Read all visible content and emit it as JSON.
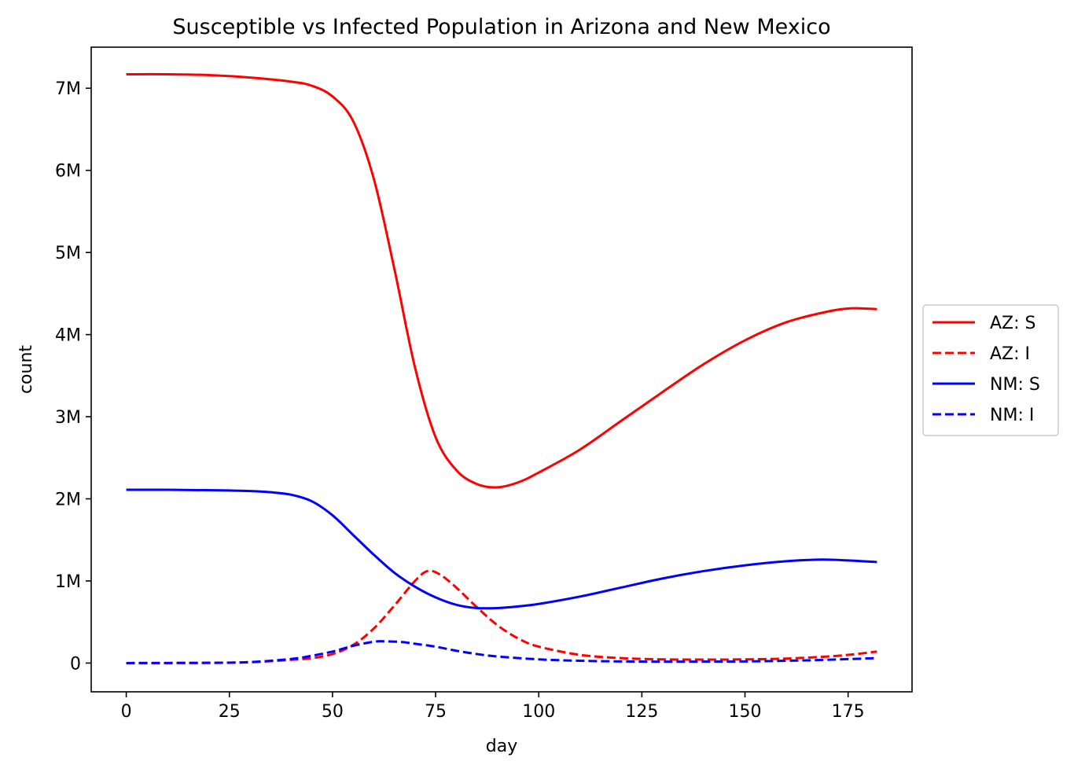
{
  "chart_data": {
    "type": "line",
    "title": "Susceptible vs Infected Population in Arizona and New Mexico",
    "xlabel": "day",
    "ylabel": "count",
    "xlim": [
      -8.5,
      190.5
    ],
    "ylim": [
      -350000,
      7500000
    ],
    "x_ticks": [
      {
        "value": 0,
        "label": "0"
      },
      {
        "value": 25,
        "label": "25"
      },
      {
        "value": 50,
        "label": "50"
      },
      {
        "value": 75,
        "label": "75"
      },
      {
        "value": 100,
        "label": "100"
      },
      {
        "value": 125,
        "label": "125"
      },
      {
        "value": 150,
        "label": "150"
      },
      {
        "value": 175,
        "label": "175"
      }
    ],
    "y_ticks": [
      {
        "value": 0,
        "label": "0"
      },
      {
        "value": 1000000,
        "label": "1M"
      },
      {
        "value": 2000000,
        "label": "2M"
      },
      {
        "value": 3000000,
        "label": "3M"
      },
      {
        "value": 4000000,
        "label": "4M"
      },
      {
        "value": 5000000,
        "label": "5M"
      },
      {
        "value": 6000000,
        "label": "6M"
      },
      {
        "value": 7000000,
        "label": "7M"
      }
    ],
    "grid": false,
    "legend_position": "center-right outside",
    "series": [
      {
        "name": "AZ: S",
        "color": "#ff0000",
        "dash": "solid",
        "points": [
          [
            0,
            7170000
          ],
          [
            10,
            7170000
          ],
          [
            20,
            7160000
          ],
          [
            30,
            7130000
          ],
          [
            40,
            7080000
          ],
          [
            45,
            7030000
          ],
          [
            50,
            6900000
          ],
          [
            55,
            6600000
          ],
          [
            60,
            5900000
          ],
          [
            65,
            4800000
          ],
          [
            70,
            3600000
          ],
          [
            75,
            2750000
          ],
          [
            80,
            2350000
          ],
          [
            85,
            2180000
          ],
          [
            90,
            2140000
          ],
          [
            95,
            2200000
          ],
          [
            100,
            2320000
          ],
          [
            110,
            2600000
          ],
          [
            120,
            2950000
          ],
          [
            130,
            3300000
          ],
          [
            140,
            3640000
          ],
          [
            150,
            3930000
          ],
          [
            160,
            4150000
          ],
          [
            170,
            4280000
          ],
          [
            176,
            4320000
          ],
          [
            182,
            4310000
          ]
        ]
      },
      {
        "name": "AZ: I",
        "color": "#ff0000",
        "dash": "dashed",
        "points": [
          [
            0,
            0
          ],
          [
            20,
            3000
          ],
          [
            30,
            10000
          ],
          [
            40,
            40000
          ],
          [
            45,
            60000
          ],
          [
            50,
            110000
          ],
          [
            55,
            220000
          ],
          [
            60,
            420000
          ],
          [
            65,
            700000
          ],
          [
            70,
            1000000
          ],
          [
            73,
            1120000
          ],
          [
            76,
            1080000
          ],
          [
            80,
            920000
          ],
          [
            85,
            680000
          ],
          [
            90,
            460000
          ],
          [
            95,
            300000
          ],
          [
            100,
            200000
          ],
          [
            110,
            100000
          ],
          [
            120,
            60000
          ],
          [
            130,
            45000
          ],
          [
            140,
            42000
          ],
          [
            150,
            45000
          ],
          [
            160,
            55000
          ],
          [
            170,
            80000
          ],
          [
            176,
            105000
          ],
          [
            182,
            140000
          ]
        ]
      },
      {
        "name": "NM: S",
        "color": "#0000ff",
        "dash": "solid",
        "points": [
          [
            0,
            2110000
          ],
          [
            10,
            2110000
          ],
          [
            20,
            2105000
          ],
          [
            30,
            2095000
          ],
          [
            35,
            2080000
          ],
          [
            40,
            2050000
          ],
          [
            45,
            1970000
          ],
          [
            50,
            1800000
          ],
          [
            55,
            1560000
          ],
          [
            60,
            1320000
          ],
          [
            65,
            1100000
          ],
          [
            70,
            930000
          ],
          [
            75,
            800000
          ],
          [
            80,
            710000
          ],
          [
            85,
            670000
          ],
          [
            90,
            670000
          ],
          [
            95,
            690000
          ],
          [
            100,
            720000
          ],
          [
            110,
            810000
          ],
          [
            120,
            920000
          ],
          [
            130,
            1030000
          ],
          [
            140,
            1120000
          ],
          [
            150,
            1190000
          ],
          [
            160,
            1240000
          ],
          [
            168,
            1260000
          ],
          [
            175,
            1250000
          ],
          [
            182,
            1230000
          ]
        ]
      },
      {
        "name": "NM: I",
        "color": "#0000ff",
        "dash": "dashed",
        "points": [
          [
            0,
            0
          ],
          [
            20,
            3000
          ],
          [
            30,
            12000
          ],
          [
            40,
            50000
          ],
          [
            45,
            90000
          ],
          [
            50,
            140000
          ],
          [
            55,
            210000
          ],
          [
            60,
            260000
          ],
          [
            63,
            265000
          ],
          [
            67,
            255000
          ],
          [
            70,
            235000
          ],
          [
            75,
            200000
          ],
          [
            80,
            150000
          ],
          [
            85,
            110000
          ],
          [
            90,
            80000
          ],
          [
            100,
            45000
          ],
          [
            110,
            28000
          ],
          [
            120,
            20000
          ],
          [
            130,
            17000
          ],
          [
            140,
            18000
          ],
          [
            150,
            20000
          ],
          [
            160,
            28000
          ],
          [
            170,
            40000
          ],
          [
            182,
            60000
          ]
        ]
      }
    ]
  }
}
